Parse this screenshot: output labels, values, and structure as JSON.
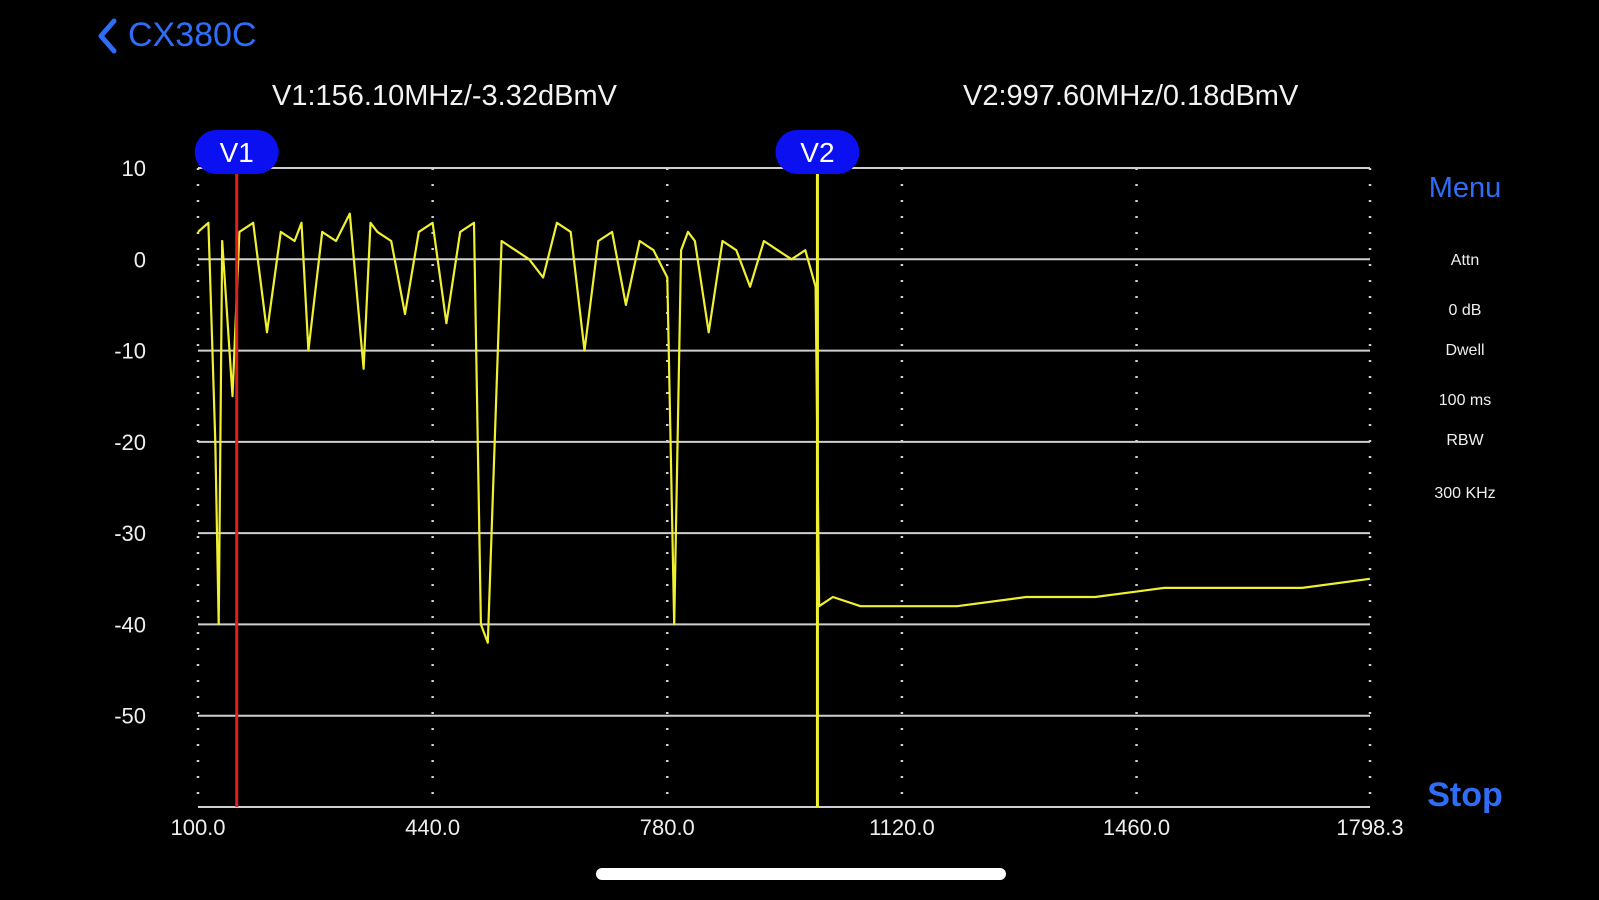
{
  "nav": {
    "back_label": "CX380C"
  },
  "markers": {
    "v1": {
      "label": "V1",
      "readout": "V1:156.10MHz/-3.32dBmV",
      "freq": 156.1,
      "level": -3.32,
      "color": "#e02020"
    },
    "v2": {
      "label": "V2",
      "readout": "V2:997.60MHz/0.18dBmV",
      "freq": 997.6,
      "level": 0.18,
      "color": "#f0f030"
    }
  },
  "sidebar": {
    "menu_label": "Menu",
    "attn_label": "Attn",
    "attn_value": "0 dB",
    "dwell_label": "Dwell",
    "dwell_value": "100 ms",
    "rbw_label": "RBW",
    "rbw_value": "300 KHz",
    "stop_label": "Stop"
  },
  "colors": {
    "accent": "#2f6df6",
    "trace": "#f0f030",
    "grid": "#cfcfcf",
    "marker_badge": "#0a10f0"
  },
  "chart_data": {
    "type": "line",
    "xlabel": "",
    "ylabel": "",
    "xlim": [
      100.0,
      1798.3
    ],
    "ylim": [
      -60,
      10
    ],
    "x_ticks": [
      "100.0",
      "440.0",
      "780.0",
      "1120.0",
      "1460.0",
      "1798.3"
    ],
    "y_ticks": [
      "10",
      "0",
      "-10",
      "-20",
      "-30",
      "-40",
      "-50"
    ],
    "series": [
      {
        "x": [
          100,
          115,
          125,
          130,
          135,
          150,
          160,
          180,
          200,
          220,
          240,
          250,
          260,
          280,
          300,
          320,
          340,
          350,
          360,
          380,
          400,
          420,
          440,
          460,
          480,
          500,
          510,
          520,
          540,
          560,
          580,
          600,
          620,
          640,
          660,
          680,
          700,
          720,
          740,
          760,
          780,
          790,
          800,
          810,
          820,
          840,
          860,
          880,
          900,
          920,
          940,
          960,
          980,
          995,
          1000,
          1020,
          1060,
          1120,
          1200,
          1300,
          1400,
          1500,
          1600,
          1700,
          1798
        ],
        "y": [
          3,
          4,
          -20,
          -40,
          2,
          -15,
          3,
          4,
          -8,
          3,
          2,
          4,
          -10,
          3,
          2,
          5,
          -12,
          4,
          3,
          2,
          -6,
          3,
          4,
          -7,
          3,
          4,
          -40,
          -42,
          2,
          1,
          0,
          -2,
          4,
          3,
          -10,
          2,
          3,
          -5,
          2,
          1,
          -2,
          -40,
          1,
          3,
          2,
          -8,
          2,
          1,
          -3,
          2,
          1,
          0,
          1,
          -3,
          -38,
          -37,
          -38,
          -38,
          -38,
          -37,
          -37,
          -36,
          -36,
          -36,
          -35
        ]
      }
    ]
  }
}
